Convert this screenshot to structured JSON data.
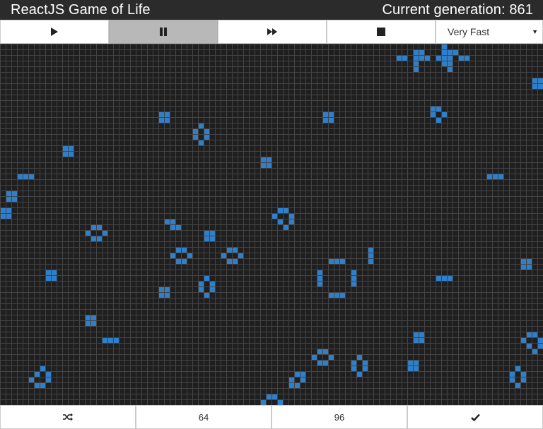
{
  "app": {
    "title": "ReactJS Game of Life",
    "generation_label": "Current generation: 861"
  },
  "controls": {
    "buttons": [
      {
        "name": "play-button",
        "icon": "play-icon",
        "active": false
      },
      {
        "name": "pause-button",
        "icon": "pause-icon",
        "active": true
      },
      {
        "name": "step-forward-button",
        "icon": "fast-forward-icon",
        "active": false
      },
      {
        "name": "stop-button",
        "icon": "stop-icon",
        "active": false
      }
    ],
    "speed": {
      "selected": "Very Fast"
    }
  },
  "board": {
    "columns": 96,
    "rows": 64,
    "dead_color": "#1f1f1f",
    "live_color": "#2f7fcb",
    "grid_color": "#444444",
    "live_cells": [
      [
        73,
        2
      ],
      [
        74,
        1
      ],
      [
        74,
        2
      ],
      [
        75,
        2
      ],
      [
        73,
        1
      ],
      [
        78,
        1
      ],
      [
        79,
        1
      ],
      [
        78,
        2
      ],
      [
        79,
        2
      ],
      [
        70,
        2
      ],
      [
        71,
        2
      ],
      [
        81,
        2
      ],
      [
        82,
        2
      ],
      [
        77,
        2
      ],
      [
        80,
        1
      ],
      [
        78,
        0
      ],
      [
        73,
        3
      ],
      [
        73,
        4
      ],
      [
        78,
        3
      ],
      [
        79,
        3
      ],
      [
        79,
        4
      ],
      [
        94,
        6
      ],
      [
        95,
        6
      ],
      [
        94,
        7
      ],
      [
        95,
        7
      ],
      [
        28,
        12
      ],
      [
        29,
        12
      ],
      [
        28,
        13
      ],
      [
        29,
        13
      ],
      [
        57,
        12
      ],
      [
        58,
        12
      ],
      [
        57,
        13
      ],
      [
        58,
        13
      ],
      [
        76,
        11
      ],
      [
        77,
        11
      ],
      [
        78,
        12
      ],
      [
        76,
        12
      ],
      [
        77,
        13
      ],
      [
        35,
        14
      ],
      [
        34,
        15
      ],
      [
        36,
        15
      ],
      [
        34,
        16
      ],
      [
        36,
        16
      ],
      [
        35,
        17
      ],
      [
        11,
        18
      ],
      [
        12,
        18
      ],
      [
        11,
        19
      ],
      [
        12,
        19
      ],
      [
        46,
        20
      ],
      [
        47,
        20
      ],
      [
        46,
        21
      ],
      [
        47,
        21
      ],
      [
        3,
        23
      ],
      [
        4,
        23
      ],
      [
        5,
        23
      ],
      [
        86,
        23
      ],
      [
        87,
        23
      ],
      [
        88,
        23
      ],
      [
        1,
        26
      ],
      [
        2,
        26
      ],
      [
        1,
        27
      ],
      [
        2,
        27
      ],
      [
        0,
        29
      ],
      [
        1,
        29
      ],
      [
        0,
        30
      ],
      [
        1,
        30
      ],
      [
        49,
        29
      ],
      [
        50,
        29
      ],
      [
        48,
        30
      ],
      [
        51,
        30
      ],
      [
        49,
        31
      ],
      [
        51,
        31
      ],
      [
        50,
        32
      ],
      [
        29,
        31
      ],
      [
        30,
        31
      ],
      [
        30,
        32
      ],
      [
        31,
        32
      ],
      [
        16,
        32
      ],
      [
        17,
        32
      ],
      [
        15,
        33
      ],
      [
        18,
        33
      ],
      [
        16,
        34
      ],
      [
        17,
        34
      ],
      [
        36,
        33
      ],
      [
        37,
        33
      ],
      [
        36,
        34
      ],
      [
        37,
        34
      ],
      [
        65,
        36
      ],
      [
        65,
        37
      ],
      [
        65,
        38
      ],
      [
        31,
        36
      ],
      [
        32,
        36
      ],
      [
        30,
        37
      ],
      [
        33,
        37
      ],
      [
        31,
        38
      ],
      [
        32,
        38
      ],
      [
        40,
        36
      ],
      [
        41,
        36
      ],
      [
        39,
        37
      ],
      [
        42,
        37
      ],
      [
        40,
        38
      ],
      [
        41,
        38
      ],
      [
        58,
        38
      ],
      [
        59,
        38
      ],
      [
        60,
        38
      ],
      [
        56,
        40
      ],
      [
        56,
        41
      ],
      [
        56,
        42
      ],
      [
        62,
        40
      ],
      [
        62,
        41
      ],
      [
        62,
        42
      ],
      [
        58,
        44
      ],
      [
        59,
        44
      ],
      [
        60,
        44
      ],
      [
        92,
        38
      ],
      [
        93,
        38
      ],
      [
        92,
        39
      ],
      [
        93,
        39
      ],
      [
        8,
        40
      ],
      [
        9,
        40
      ],
      [
        8,
        41
      ],
      [
        9,
        41
      ],
      [
        36,
        41
      ],
      [
        35,
        42
      ],
      [
        37,
        42
      ],
      [
        35,
        43
      ],
      [
        37,
        43
      ],
      [
        36,
        44
      ],
      [
        77,
        41
      ],
      [
        78,
        41
      ],
      [
        79,
        41
      ],
      [
        28,
        43
      ],
      [
        29,
        43
      ],
      [
        28,
        44
      ],
      [
        29,
        44
      ],
      [
        15,
        48
      ],
      [
        16,
        48
      ],
      [
        15,
        49
      ],
      [
        16,
        49
      ],
      [
        18,
        52
      ],
      [
        19,
        52
      ],
      [
        20,
        52
      ],
      [
        73,
        51
      ],
      [
        74,
        51
      ],
      [
        73,
        52
      ],
      [
        74,
        52
      ],
      [
        93,
        51
      ],
      [
        94,
        51
      ],
      [
        92,
        52
      ],
      [
        95,
        52
      ],
      [
        93,
        53
      ],
      [
        95,
        53
      ],
      [
        94,
        54
      ],
      [
        56,
        54
      ],
      [
        57,
        54
      ],
      [
        55,
        55
      ],
      [
        58,
        55
      ],
      [
        56,
        56
      ],
      [
        57,
        56
      ],
      [
        63,
        55
      ],
      [
        62,
        56
      ],
      [
        64,
        56
      ],
      [
        62,
        57
      ],
      [
        64,
        57
      ],
      [
        63,
        58
      ],
      [
        72,
        56
      ],
      [
        73,
        56
      ],
      [
        72,
        57
      ],
      [
        73,
        57
      ],
      [
        7,
        57
      ],
      [
        6,
        58
      ],
      [
        8,
        58
      ],
      [
        5,
        59
      ],
      [
        8,
        59
      ],
      [
        6,
        60
      ],
      [
        7,
        60
      ],
      [
        52,
        58
      ],
      [
        53,
        58
      ],
      [
        51,
        59
      ],
      [
        53,
        59
      ],
      [
        51,
        60
      ],
      [
        52,
        60
      ],
      [
        91,
        57
      ],
      [
        90,
        58
      ],
      [
        92,
        58
      ],
      [
        90,
        59
      ],
      [
        92,
        59
      ],
      [
        91,
        60
      ],
      [
        47,
        62
      ],
      [
        48,
        62
      ],
      [
        46,
        63
      ],
      [
        49,
        63
      ]
    ]
  },
  "footer": {
    "buttons": [
      {
        "name": "randomize-button",
        "icon": "shuffle-icon",
        "label": ""
      },
      {
        "name": "size-64-button",
        "icon": "",
        "label": "64"
      },
      {
        "name": "size-96-button",
        "icon": "",
        "label": "96"
      },
      {
        "name": "confirm-button",
        "icon": "check-icon",
        "label": ""
      }
    ]
  }
}
